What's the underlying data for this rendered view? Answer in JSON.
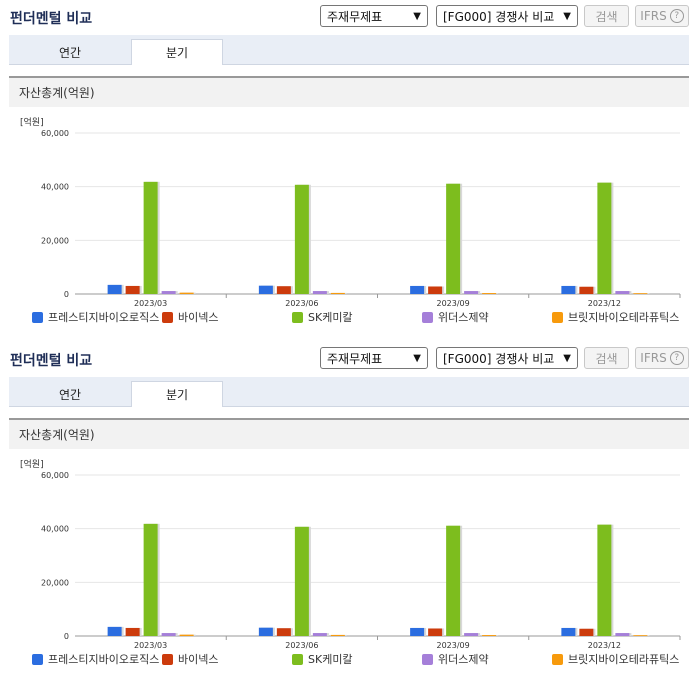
{
  "header": {
    "title": "펀더멘털 비교",
    "report_select": "주재무제표",
    "compare_select": "[FG000] 경쟁사 비교",
    "search_label": "검색",
    "ifrs_label": "IFRS",
    "help_symbol": "?"
  },
  "tabs": [
    {
      "label": "연간",
      "active": false
    },
    {
      "label": "분기",
      "active": true
    }
  ],
  "section_title": "자산총계(억원)",
  "colors": {
    "series": [
      "#2b6de0",
      "#cc3b0c",
      "#7dbd1e",
      "#a57fd9",
      "#f79a0c"
    ]
  },
  "chart_data": {
    "type": "bar",
    "unit": "[억원]",
    "categories": [
      "2023/03",
      "2023/06",
      "2023/09",
      "2023/12"
    ],
    "ylim": [
      0,
      60000
    ],
    "yticks": [
      "60,000",
      "40,000",
      "20,000",
      "0"
    ],
    "ytick_values": [
      60000,
      40000,
      20000,
      0
    ],
    "series": [
      {
        "name": "프레스티지바이오로직스",
        "values": [
          3400,
          3100,
          3000,
          3000
        ]
      },
      {
        "name": "바이넥스",
        "values": [
          3000,
          2900,
          2800,
          2700
        ]
      },
      {
        "name": "SK케미칼",
        "values": [
          41800,
          40700,
          41100,
          41500
        ]
      },
      {
        "name": "위더스제약",
        "values": [
          1100,
          1100,
          1100,
          1100
        ]
      },
      {
        "name": "브릿지바이오테라퓨틱스",
        "values": [
          500,
          400,
          350,
          300
        ]
      }
    ]
  }
}
